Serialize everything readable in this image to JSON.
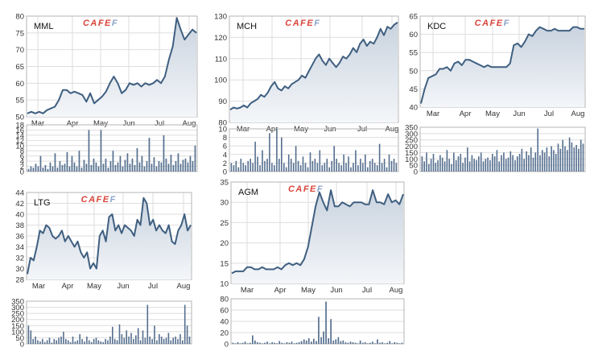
{
  "watermark": "CAFEF",
  "colors": {
    "line": "#3f5f80",
    "area_top": "#c9d3df",
    "area_bottom": "#f4f6f9",
    "volume": "#556f8f",
    "grid": "#dedede",
    "frame": "#b5b5b5",
    "watermark_red": "#d9453a",
    "watermark_blue": "#8aa4c8"
  },
  "chart_data": [
    {
      "type": "area",
      "title": "MML",
      "categories": [
        "Mar",
        "Apr",
        "May",
        "Jun",
        "Jul",
        "Aug"
      ],
      "price_ylim": [
        50,
        80
      ],
      "price_yticks": [
        50,
        55,
        60,
        65,
        70,
        75,
        80
      ],
      "price": [
        51,
        51.5,
        51,
        51.5,
        51,
        52,
        52.5,
        53,
        55,
        58,
        58,
        57,
        57.5,
        57,
        56.5,
        54.5,
        57,
        54,
        55,
        56,
        57.5,
        60,
        62,
        60,
        57,
        58,
        60,
        59.5,
        60,
        59,
        60,
        59.5,
        60,
        61,
        60,
        62,
        67,
        71,
        79.5,
        76,
        73,
        74.5,
        76,
        75
      ],
      "volume_ylim": [
        0,
        18
      ],
      "volume_yticks": [
        0,
        2,
        4,
        6,
        8,
        10,
        12,
        14,
        16,
        18
      ],
      "volume": [
        1,
        2,
        1.5,
        3,
        2,
        6,
        1.5,
        2.5,
        1,
        3.5,
        2,
        7,
        1.5,
        4,
        2.5,
        3,
        7.5,
        2,
        6,
        3.5,
        2,
        8,
        1.5,
        4.5,
        3,
        16,
        2.5,
        5,
        3.5,
        2,
        16,
        3,
        5,
        1.5,
        4,
        8,
        2.5,
        3.5,
        6,
        2,
        4.5,
        7,
        3,
        5,
        2.5,
        9,
        3.5,
        6,
        2,
        4,
        13,
        3,
        5.5,
        2,
        4,
        3.5,
        14,
        5,
        3,
        6.5,
        2.5,
        4,
        7,
        3,
        4.5,
        5,
        3.5,
        6,
        4,
        10
      ]
    },
    {
      "type": "area",
      "title": "MCH",
      "categories": [
        "Mar",
        "Apr",
        "May",
        "Jun",
        "Jul",
        "Aug"
      ],
      "price_ylim": [
        80,
        130
      ],
      "price_yticks": [
        80,
        90,
        100,
        110,
        120,
        130
      ],
      "price": [
        86,
        87,
        86.5,
        87,
        88,
        87,
        89,
        90,
        91,
        93,
        92,
        94,
        97,
        99,
        96,
        95,
        97,
        96,
        98,
        99,
        100,
        102,
        101,
        104,
        107,
        110,
        112,
        109,
        107,
        110,
        108,
        106,
        108,
        111,
        110,
        112,
        115,
        113,
        117,
        119,
        116,
        118,
        117,
        120,
        124,
        121,
        125,
        124,
        126,
        127
      ],
      "volume_ylim": [
        0,
        10
      ],
      "volume_yticks": [
        0,
        2,
        4,
        6,
        8,
        10
      ],
      "volume": [
        2,
        1.5,
        2.5,
        1,
        3,
        2,
        1.5,
        2.5,
        3,
        2,
        7,
        3.5,
        1.5,
        5,
        2.5,
        3,
        9,
        2,
        1.5,
        10,
        3,
        8,
        2,
        1,
        4,
        3,
        2,
        6,
        2.5,
        1.5,
        3.5,
        2,
        1,
        4.5,
        2.5,
        3,
        2,
        5,
        1.5,
        2,
        3,
        1,
        2.5,
        6,
        3,
        2,
        1.5,
        4,
        2,
        3.5,
        1,
        2,
        5,
        1.5,
        3,
        2,
        4,
        1,
        2.5,
        3,
        2,
        1.5,
        6.5,
        2,
        3,
        1,
        4,
        2.5,
        3,
        2
      ]
    },
    {
      "type": "area",
      "title": "KDC",
      "categories": [
        "Mar",
        "Apr",
        "May",
        "Jun",
        "Jul",
        "Aug"
      ],
      "price_ylim": [
        40,
        65
      ],
      "price_yticks": [
        40,
        45,
        50,
        55,
        60,
        65
      ],
      "price": [
        41,
        45,
        48,
        48.5,
        49,
        50.5,
        50.5,
        51,
        50,
        52,
        52.5,
        51.5,
        53,
        53,
        52.5,
        52,
        51.5,
        51,
        51.5,
        51,
        51,
        51,
        51,
        51,
        52,
        57,
        57.5,
        56.5,
        58,
        60,
        59.5,
        61,
        62,
        61.5,
        61,
        61,
        61.5,
        61,
        61,
        61,
        61,
        62,
        62,
        61.5,
        61.5
      ],
      "volume_ylim": [
        0,
        350
      ],
      "volume_yticks": [
        0,
        50,
        100,
        150,
        200,
        250,
        300,
        350
      ],
      "volume": [
        120,
        80,
        150,
        60,
        100,
        140,
        70,
        90,
        130,
        110,
        80,
        170,
        100,
        60,
        150,
        90,
        120,
        140,
        70,
        110,
        190,
        80,
        130,
        100,
        90,
        120,
        150,
        80,
        100,
        110,
        90,
        140,
        120,
        170,
        80,
        130,
        150,
        100,
        110,
        160,
        130,
        90,
        120,
        140,
        180,
        100,
        160,
        130,
        190,
        110,
        150,
        340,
        130,
        170,
        150,
        190,
        120,
        200,
        170,
        140,
        220,
        180,
        250,
        200,
        170,
        270,
        230,
        190,
        210,
        180,
        250,
        220
      ]
    },
    {
      "type": "area",
      "title": "LTG",
      "categories": [
        "Mar",
        "Apr",
        "May",
        "Jun",
        "Jul",
        "Aug"
      ],
      "price_ylim": [
        28,
        44
      ],
      "price_yticks": [
        28,
        30,
        32,
        34,
        36,
        38,
        40,
        42,
        44
      ],
      "price": [
        29,
        32,
        31.5,
        34,
        37,
        36.5,
        38,
        37.5,
        36,
        35.5,
        36,
        37,
        35,
        36,
        35,
        34,
        35,
        33,
        32,
        33,
        30,
        31,
        30,
        36,
        37,
        35,
        39.5,
        40,
        37,
        38,
        36.5,
        38,
        37.5,
        37,
        36,
        39,
        38,
        43,
        42,
        38,
        39,
        37,
        38,
        37,
        36.5,
        38,
        35,
        34.5,
        37,
        38,
        40,
        37,
        38
      ],
      "volume_ylim": [
        0,
        350
      ],
      "volume_yticks": [
        0,
        50,
        100,
        150,
        200,
        250,
        300,
        350
      ],
      "volume": [
        150,
        110,
        40,
        60,
        30,
        20,
        40,
        15,
        30,
        50,
        10,
        40,
        30,
        50,
        60,
        100,
        40,
        30,
        15,
        60,
        20,
        30,
        80,
        40,
        20,
        60,
        30,
        15,
        40,
        50,
        30,
        20,
        15,
        40,
        30,
        60,
        140,
        40,
        30,
        160,
        80,
        50,
        110,
        60,
        90,
        40,
        70,
        130,
        30,
        110,
        50,
        320,
        60,
        40,
        150,
        30,
        80,
        60,
        40,
        50,
        90,
        30,
        50,
        60,
        40,
        80,
        30,
        320,
        150,
        60
      ]
    },
    {
      "type": "area",
      "title": "AGM",
      "categories": [
        "Mar",
        "Apr",
        "May",
        "Jun",
        "Jul",
        "Aug"
      ],
      "price_ylim": [
        10,
        35
      ],
      "price_yticks": [
        10,
        15,
        20,
        25,
        30,
        35
      ],
      "price": [
        12.5,
        13,
        13,
        13,
        14,
        14,
        13.5,
        13.5,
        14,
        13.5,
        13.5,
        13.5,
        14,
        13.5,
        14.5,
        15,
        14.5,
        15,
        14.5,
        16,
        19,
        24,
        29,
        32.5,
        30,
        28,
        33,
        29,
        29,
        30,
        29.5,
        29,
        30,
        30,
        30,
        29.5,
        29.5,
        33,
        30,
        30,
        29.5,
        32,
        30,
        30.5,
        29.5,
        32
      ],
      "volume_ylim": [
        0,
        80
      ],
      "volume_yticks": [
        0,
        20,
        40,
        60,
        80
      ],
      "volume": [
        2,
        1,
        3,
        1,
        2,
        4,
        1,
        2,
        15,
        6,
        3,
        2,
        1,
        2,
        4,
        1,
        3,
        2,
        1,
        5,
        2,
        1,
        3,
        2,
        4,
        1,
        2,
        3,
        5,
        8,
        6,
        10,
        4,
        9,
        5,
        48,
        12,
        22,
        75,
        10,
        44,
        6,
        8,
        12,
        5,
        6,
        3,
        2,
        4,
        3,
        2,
        1,
        6,
        2,
        3,
        1,
        2,
        4,
        1,
        8,
        2,
        3,
        1,
        2,
        5,
        1,
        3,
        2,
        1,
        2
      ]
    }
  ]
}
